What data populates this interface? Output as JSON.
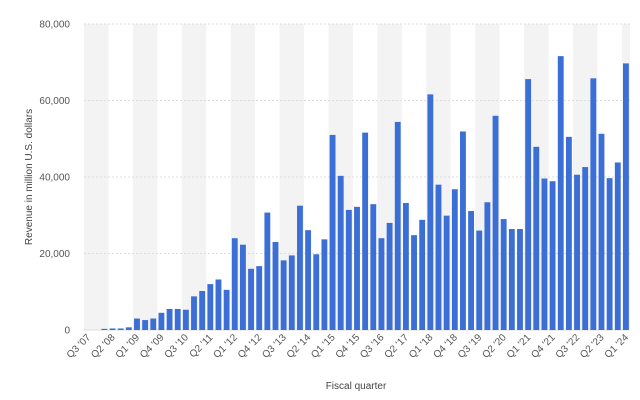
{
  "chart_data": {
    "type": "bar",
    "ylabel": "Revenue in million U.S. dollars",
    "xlabel": "Fiscal quarter",
    "ylim": [
      0,
      80000
    ],
    "yticks": [
      "0",
      "20,000",
      "40,000",
      "60,000",
      "80,000"
    ],
    "ytick_values": [
      0,
      20000,
      40000,
      60000,
      80000
    ],
    "grid": true,
    "bar_color": "#3c6fd6",
    "band_color": "#f3f3f3",
    "grid_color": "#dddddd",
    "categories": [
      "Q3 '07",
      "Q4 '07",
      "Q1 '08",
      "Q2 '08",
      "Q3 '08",
      "Q4 '08",
      "Q1 '09",
      "Q2 '09",
      "Q3 '09",
      "Q4 '09",
      "Q1 '10",
      "Q2 '10",
      "Q3 '10",
      "Q4 '10",
      "Q1 '11",
      "Q2 '11",
      "Q3 '11",
      "Q4 '11",
      "Q1 '12",
      "Q2 '12",
      "Q3 '12",
      "Q4 '12",
      "Q1 '13",
      "Q2 '13",
      "Q3 '13",
      "Q4 '13",
      "Q1 '14",
      "Q2 '14",
      "Q3 '14",
      "Q4 '14",
      "Q1 '15",
      "Q2 '15",
      "Q3 '15",
      "Q4 '15",
      "Q1 '16",
      "Q2 '16",
      "Q3 '16",
      "Q4 '16",
      "Q1 '17",
      "Q2 '17",
      "Q3 '17",
      "Q4 '17",
      "Q1 '18",
      "Q2 '18",
      "Q3 '18",
      "Q4 '18",
      "Q1 '19",
      "Q2 '19",
      "Q3 '19",
      "Q4 '19",
      "Q1 '20",
      "Q2 '20",
      "Q3 '20",
      "Q4 '20",
      "Q1 '21",
      "Q2 '21",
      "Q3 '21",
      "Q4 '21",
      "Q1 '22",
      "Q2 '22",
      "Q3 '22",
      "Q4 '22",
      "Q1 '23",
      "Q2 '23",
      "Q3 '23",
      "Q4 '23",
      "Q1 '24"
    ],
    "values": [
      0,
      0,
      300,
      400,
      400,
      700,
      3000,
      2600,
      3000,
      4500,
      5500,
      5500,
      5300,
      8800,
      10200,
      12000,
      13200,
      10500,
      24000,
      22300,
      16000,
      16700,
      30700,
      23000,
      18200,
      19500,
      32500,
      26100,
      19800,
      23700,
      51000,
      40300,
      31400,
      32200,
      51600,
      32900,
      24000,
      28000,
      54400,
      33200,
      24800,
      28800,
      61600,
      38000,
      29900,
      36800,
      51900,
      31100,
      26000,
      33400,
      56000,
      29000,
      26400,
      26400,
      65600,
      47900,
      39600,
      38900,
      71600,
      50500,
      40600,
      42600,
      65800,
      51300,
      39700,
      43800,
      69700
    ],
    "x_tick_labels": [
      {
        "index": 0,
        "label": "Q3 '07"
      },
      {
        "index": 3,
        "label": "Q2 '08"
      },
      {
        "index": 6,
        "label": "Q1 '09"
      },
      {
        "index": 9,
        "label": "Q4 '09"
      },
      {
        "index": 12,
        "label": "Q3 '10"
      },
      {
        "index": 15,
        "label": "Q2 '11"
      },
      {
        "index": 18,
        "label": "Q1 '12"
      },
      {
        "index": 21,
        "label": "Q4 '12"
      },
      {
        "index": 24,
        "label": "Q3 '13"
      },
      {
        "index": 27,
        "label": "Q2 '14"
      },
      {
        "index": 30,
        "label": "Q1 '15"
      },
      {
        "index": 33,
        "label": "Q4 '15"
      },
      {
        "index": 36,
        "label": "Q3 '16"
      },
      {
        "index": 39,
        "label": "Q2 '17"
      },
      {
        "index": 42,
        "label": "Q1 '18"
      },
      {
        "index": 45,
        "label": "Q4 '18"
      },
      {
        "index": 48,
        "label": "Q3 '19"
      },
      {
        "index": 51,
        "label": "Q2 '20"
      },
      {
        "index": 54,
        "label": "Q1 '21"
      },
      {
        "index": 57,
        "label": "Q4 '21"
      },
      {
        "index": 60,
        "label": "Q3 '22"
      },
      {
        "index": 63,
        "label": "Q2 '23"
      },
      {
        "index": 66,
        "label": "Q1 '24"
      }
    ]
  }
}
